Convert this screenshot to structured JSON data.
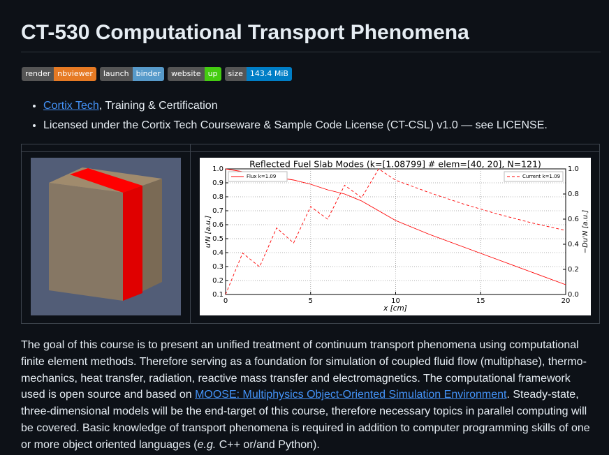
{
  "header": {
    "title": "CT-530 Computational Transport Phenomena"
  },
  "badges": [
    {
      "label": "render",
      "value": "nbviewer",
      "color": "#e67a24"
    },
    {
      "label": "launch",
      "value": "binder",
      "color": "#579aca"
    },
    {
      "label": "website",
      "value": "up",
      "color": "#44cc11"
    },
    {
      "label": "size",
      "value": "143.4 MiB",
      "color": "#007ec6"
    }
  ],
  "bullets": [
    {
      "link": "Cortix Tech",
      "text": ", Training & Certification"
    },
    {
      "text": "Licensed under the Cortix Tech Courseware & Sample Code License (CT-CSL) v1.0 — see LICENSE."
    }
  ],
  "chart_data": {
    "type": "line",
    "title": "Reflected Fuel Slab Modes (k=[1.08799] # elem=[40, 20], N=121)",
    "xlabel": "x [cm]",
    "ylabel": "u'N [a.u.]",
    "y2label": "−Du'N [a.u.]",
    "x": [
      0,
      1,
      2,
      3,
      4,
      5,
      6,
      7,
      8,
      9,
      10,
      12,
      14,
      16,
      18,
      20
    ],
    "series": [
      {
        "name": "Flux k=1.09",
        "color": "#ff0000",
        "style": "solid",
        "legend": "upper left",
        "values": [
          1.0,
          0.98,
          0.96,
          0.94,
          0.92,
          0.89,
          0.85,
          0.82,
          0.77,
          0.7,
          0.63,
          0.53,
          0.44,
          0.35,
          0.26,
          0.17
        ]
      },
      {
        "name": "Current k=1.09",
        "color": "#ff0000",
        "style": "dashed",
        "axis": "y2",
        "legend": "upper right",
        "values": [
          0.0,
          0.33,
          0.22,
          0.53,
          0.41,
          0.7,
          0.6,
          0.87,
          0.77,
          1.0,
          0.91,
          0.81,
          0.72,
          0.64,
          0.57,
          0.51
        ]
      }
    ],
    "xlim": [
      0,
      20
    ],
    "xticks": [
      0,
      5,
      10,
      15,
      20
    ],
    "ylim": [
      0.1,
      1.0
    ],
    "yticks": [
      0.1,
      0.2,
      0.3,
      0.4,
      0.5,
      0.6,
      0.7,
      0.8,
      0.9,
      {
        "value": 1.0,
        "label": "1.0"
      }
    ],
    "y2lim": [
      0.0,
      1.0
    ],
    "y2ticks": [
      {
        "value": 0.0,
        "label": "0.0"
      },
      0.2,
      0.4,
      0.6,
      0.8,
      {
        "value": 1.0,
        "label": "1.0"
      }
    ],
    "grid": true
  },
  "paragraph": {
    "before": "The goal of this course is to present an unified treatment of continuum transport phenomena using computational finite element methods. Therefore serving as a foundation for simulation of coupled fluid flow (multiphase), thermo-mechanics, heat transfer, radiation, reactive mass transfer and electromagnetics. The computational framework used is open source and based on ",
    "link": "MOOSE: Multiphysics Object-Oriented Simulation Environment",
    "after": ". Steady-state, three-dimensional models will be the end-target of this course, therefore necessary topics in parallel computing will be covered. Basic knowledge of transport phenomena is required in addition to computer programming skills of one or more object oriented languages (",
    "em": "e.g.",
    "end": " C++ or/and Python)."
  }
}
